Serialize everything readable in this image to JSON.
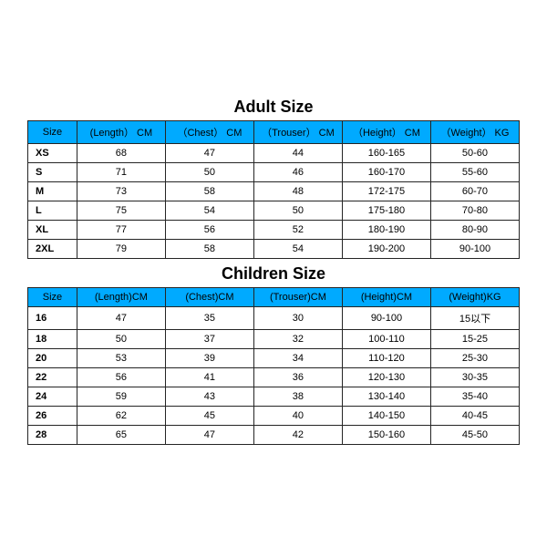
{
  "adult": {
    "title": "Adult Size",
    "header_bg": "#00aaff",
    "columns": [
      "Size",
      "(Length） CM",
      "（Chest） CM",
      "（Trouser） CM",
      "（Height） CM",
      "（Weight） KG"
    ],
    "rows": [
      [
        "XS",
        "68",
        "47",
        "44",
        "160-165",
        "50-60"
      ],
      [
        "S",
        "71",
        "50",
        "46",
        "160-170",
        "55-60"
      ],
      [
        "M",
        "73",
        "58",
        "48",
        "172-175",
        "60-70"
      ],
      [
        "L",
        "75",
        "54",
        "50",
        "175-180",
        "70-80"
      ],
      [
        "XL",
        "77",
        "56",
        "52",
        "180-190",
        "80-90"
      ],
      [
        "2XL",
        "79",
        "58",
        "54",
        "190-200",
        "90-100"
      ]
    ]
  },
  "children": {
    "title": "Children Size",
    "header_bg": "#00aaff",
    "columns": [
      "Size",
      "(Length)CM",
      "(Chest)CM",
      "(Trouser)CM",
      "(Height)CM",
      "(Weight)KG"
    ],
    "rows": [
      [
        "16",
        "47",
        "35",
        "30",
        "90-100",
        "15以下"
      ],
      [
        "18",
        "50",
        "37",
        "32",
        "100-110",
        "15-25"
      ],
      [
        "20",
        "53",
        "39",
        "34",
        "110-120",
        "25-30"
      ],
      [
        "22",
        "56",
        "41",
        "36",
        "120-130",
        "30-35"
      ],
      [
        "24",
        "59",
        "43",
        "38",
        "130-140",
        "35-40"
      ],
      [
        "26",
        "62",
        "45",
        "40",
        "140-150",
        "40-45"
      ],
      [
        "28",
        "65",
        "47",
        "42",
        "150-160",
        "45-50"
      ]
    ]
  }
}
